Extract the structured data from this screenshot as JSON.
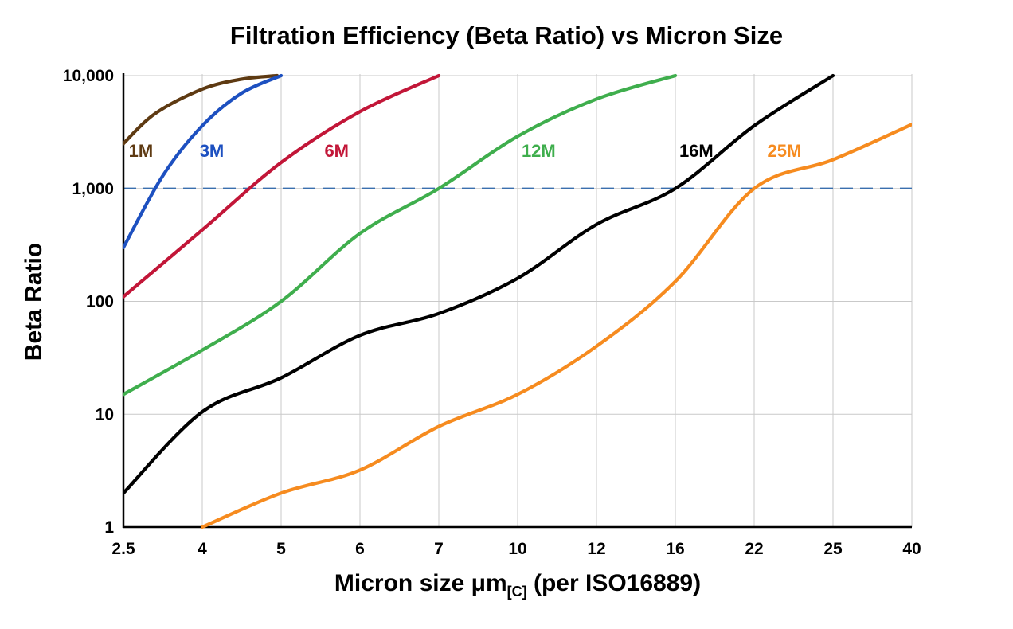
{
  "title": "Filtration Efficiency (Beta Ratio) vs Micron Size",
  "axes": {
    "y_title": "Beta Ratio",
    "x_title_main": "Micron size μm",
    "x_title_sub": "[C]",
    "x_title_suffix": " (per ISO16889)"
  },
  "chart_data": {
    "type": "line",
    "x_scale": "ordinal",
    "y_scale": "log",
    "x_ticks": [
      "2.5",
      "4",
      "5",
      "6",
      "7",
      "10",
      "12",
      "16",
      "22",
      "25",
      "40"
    ],
    "x_tick_values": [
      2.5,
      4,
      5,
      6,
      7,
      10,
      12,
      16,
      22,
      25,
      40
    ],
    "y_ticks": [
      "1",
      "10",
      "100",
      "1,000",
      "10,000"
    ],
    "y_tick_values": [
      1,
      10,
      100,
      1000,
      10000
    ],
    "ylim": [
      1,
      10000
    ],
    "grid": true,
    "legend_position": "inline-labels",
    "colors": {
      "grid": "#c9c9c9",
      "axis": "#000000",
      "text": "#000000"
    },
    "reference_line": {
      "value": 1000,
      "color": "#3a6fae",
      "style": "dashed"
    },
    "series": [
      {
        "name": "1M",
        "color": "#5e3a12",
        "label_pos": [
          2.6,
          2100
        ],
        "points": [
          [
            2.5,
            2500
          ],
          [
            3.1,
            4600
          ],
          [
            4,
            7600
          ],
          [
            4.5,
            9300
          ],
          [
            4.95,
            10000
          ]
        ]
      },
      {
        "name": "3M",
        "color": "#1d50c0",
        "label_pos": [
          3.95,
          2100
        ],
        "points": [
          [
            2.5,
            300
          ],
          [
            3.25,
            1300
          ],
          [
            4,
            3600
          ],
          [
            4.5,
            7000
          ],
          [
            5,
            10000
          ]
        ]
      },
      {
        "name": "6M",
        "color": "#c21638",
        "label_pos": [
          5.55,
          2100
        ],
        "points": [
          [
            2.5,
            110
          ],
          [
            4,
            430
          ],
          [
            5,
            1700
          ],
          [
            6,
            4800
          ],
          [
            7,
            10000
          ]
        ]
      },
      {
        "name": "12M",
        "color": "#3fae4d",
        "label_pos": [
          10.1,
          2100
        ],
        "points": [
          [
            2.5,
            15
          ],
          [
            4,
            37
          ],
          [
            5,
            100
          ],
          [
            6,
            400
          ],
          [
            7,
            1000
          ],
          [
            10,
            2900
          ],
          [
            12,
            6200
          ],
          [
            16,
            10000
          ]
        ]
      },
      {
        "name": "16M",
        "color": "#000000",
        "label_pos": [
          16.3,
          2100
        ],
        "points": [
          [
            2.5,
            2
          ],
          [
            4,
            10.5
          ],
          [
            5,
            21
          ],
          [
            6,
            50
          ],
          [
            7,
            78
          ],
          [
            10,
            160
          ],
          [
            12,
            480
          ],
          [
            16,
            1000
          ],
          [
            22,
            3600
          ],
          [
            25,
            10000
          ]
        ]
      },
      {
        "name": "25M",
        "color": "#f68b1f",
        "label_pos": [
          22.5,
          2100
        ],
        "points": [
          [
            4,
            1
          ],
          [
            5,
            2
          ],
          [
            6,
            3.2
          ],
          [
            7,
            7.8
          ],
          [
            10,
            15
          ],
          [
            12,
            40
          ],
          [
            16,
            150
          ],
          [
            22,
            1000
          ],
          [
            25,
            1800
          ],
          [
            40,
            3700
          ]
        ]
      }
    ]
  }
}
